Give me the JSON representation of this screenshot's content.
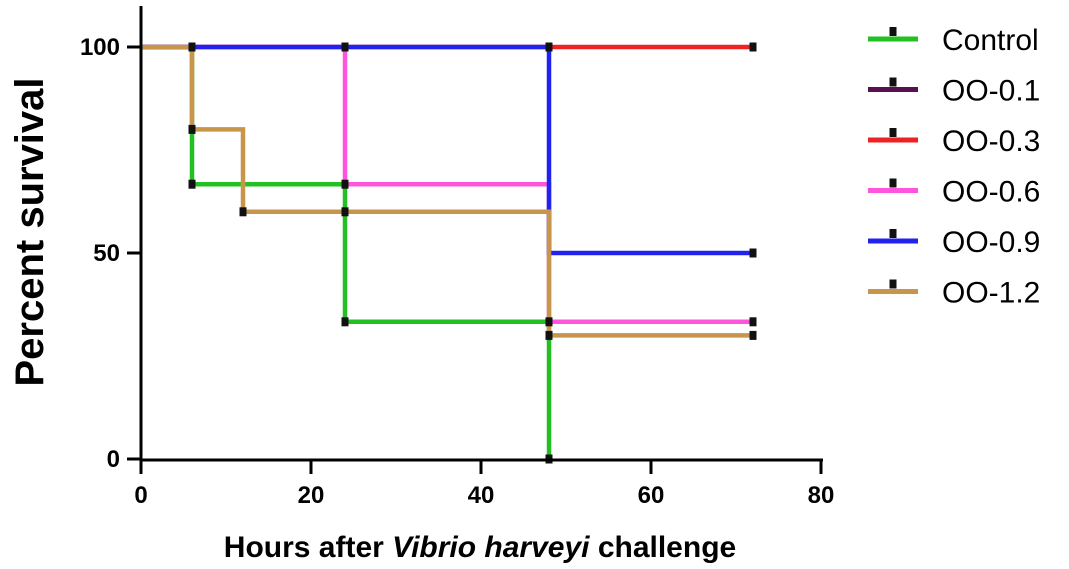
{
  "chart_data": {
    "type": "line",
    "subtype": "kaplan-meier-step",
    "ylabel": "Percent survival",
    "xlabel_parts": [
      {
        "text": "Hours after ",
        "italic": false
      },
      {
        "text": "Vibrio harveyi",
        "italic": true
      },
      {
        "text": " challenge",
        "italic": false
      }
    ],
    "xlim": [
      0,
      80
    ],
    "ylim": [
      0,
      100
    ],
    "xticks": [
      0,
      20,
      40,
      60,
      80
    ],
    "yticks": [
      0,
      50,
      100
    ],
    "xtick_labels": [
      "0",
      "20",
      "40",
      "60",
      "80"
    ],
    "ytick_labels": [
      "0",
      "50",
      "100"
    ],
    "grid": false,
    "legend_position": "right",
    "series": [
      {
        "name": "Control",
        "color": "#22c022",
        "steps": [
          [
            0,
            100
          ],
          [
            6,
            66.7
          ],
          [
            24,
            33.3
          ],
          [
            48,
            0
          ]
        ],
        "censored": [
          [
            6,
            66.7
          ],
          [
            24,
            33.3
          ],
          [
            48,
            0
          ]
        ]
      },
      {
        "name": "OO-0.1",
        "color": "#5a1050",
        "steps": [
          [
            0,
            100
          ]
        ],
        "censored": []
      },
      {
        "name": "OO-0.3",
        "color": "#ee2222",
        "steps": [
          [
            0,
            100
          ],
          [
            72,
            100
          ]
        ],
        "censored": [
          [
            48,
            100
          ],
          [
            72,
            100
          ]
        ]
      },
      {
        "name": "OO-0.6",
        "color": "#ff55dd",
        "steps": [
          [
            0,
            100
          ],
          [
            24,
            66.7
          ],
          [
            48,
            33.3
          ],
          [
            72,
            33.3
          ]
        ],
        "censored": [
          [
            24,
            66.7
          ],
          [
            48,
            33.3
          ],
          [
            72,
            33.3
          ]
        ]
      },
      {
        "name": "OO-0.9",
        "color": "#2222ee",
        "steps": [
          [
            0,
            100
          ],
          [
            48,
            50
          ],
          [
            72,
            50
          ]
        ],
        "censored": [
          [
            6,
            100
          ],
          [
            24,
            100
          ],
          [
            72,
            50
          ]
        ]
      },
      {
        "name": "OO-1.2",
        "color": "#c8964a",
        "steps": [
          [
            0,
            100
          ],
          [
            6,
            80
          ],
          [
            12,
            60
          ],
          [
            48,
            30
          ],
          [
            72,
            30
          ]
        ],
        "censored": [
          [
            6,
            80
          ],
          [
            12,
            60
          ],
          [
            24,
            60
          ],
          [
            48,
            30
          ],
          [
            72,
            30
          ]
        ]
      }
    ]
  }
}
